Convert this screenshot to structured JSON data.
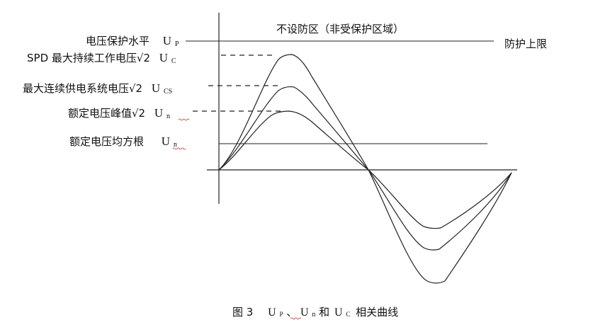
{
  "labels": {
    "zone": "不设防区（非受保护区域）",
    "upper_limit": "防护上限",
    "up_text": "电压保护水平",
    "up_sym": "U",
    "up_sub": "P",
    "uc_text": "SPD 最大持续工作电压√2",
    "uc_sym": "U",
    "uc_sub": "C",
    "ucs_text": "最大连续供电系统电压√2",
    "ucs_sym": "U",
    "ucs_sub": "CS",
    "peak_text": "额定电压峰值√2",
    "peak_sym": "U",
    "peak_sub": "n",
    "rms_text": "额定电压均方根",
    "rms_sym": "U",
    "rms_sub": "n"
  },
  "caption": {
    "prefix": "图 3",
    "up_sym": "U",
    "up_sub": "P",
    "sep": "、",
    "un_sym": "U",
    "un_sub": "n",
    "he": "和",
    "uc_sym": "U",
    "uc_sub": "C",
    "suffix": "相关曲线"
  },
  "colors": {
    "line": "#222222",
    "wavy": "#c0392b"
  }
}
